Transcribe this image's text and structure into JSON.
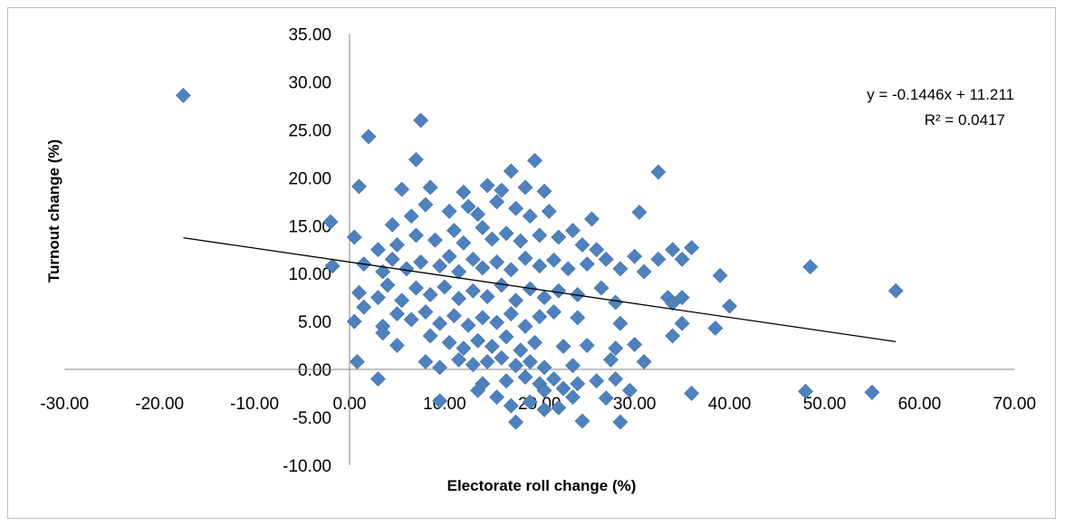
{
  "chart_data": {
    "type": "scatter",
    "xlabel": "Electorate roll change (%)",
    "ylabel": "Turnout change (%)",
    "xlim": [
      -30,
      70
    ],
    "ylim": [
      -10,
      35
    ],
    "x_ticks": [
      "-30.00",
      "-20.00",
      "-10.00",
      "0.00",
      "10.00",
      "20.00",
      "30.00",
      "40.00",
      "50.00",
      "60.00",
      "70.00"
    ],
    "y_ticks": [
      "-10.00",
      "-5.00",
      "0.00",
      "5.00",
      "10.00",
      "15.00",
      "20.00",
      "25.00",
      "30.00",
      "35.00"
    ],
    "trendline": {
      "equation": "y = -0.1446x + 11.211",
      "r_squared": "R² = 0.0417",
      "slope": -0.1446,
      "intercept": 11.211,
      "x_range": [
        -17.5,
        57.5
      ]
    },
    "marker_color": "#4f81bd",
    "line_color": "#000000",
    "points": [
      [
        -17.5,
        28.6
      ],
      [
        7.5,
        26.0
      ],
      [
        2.0,
        24.3
      ],
      [
        7.0,
        21.9
      ],
      [
        17.0,
        20.7
      ],
      [
        19.5,
        21.8
      ],
      [
        32.5,
        20.6
      ],
      [
        1.0,
        19.1
      ],
      [
        5.5,
        18.8
      ],
      [
        8.5,
        19.0
      ],
      [
        12.0,
        18.5
      ],
      [
        14.5,
        19.2
      ],
      [
        16.0,
        18.7
      ],
      [
        18.5,
        19.0
      ],
      [
        20.5,
        18.6
      ],
      [
        -2.0,
        15.4
      ],
      [
        4.5,
        15.1
      ],
      [
        6.5,
        16.0
      ],
      [
        8.0,
        17.2
      ],
      [
        10.5,
        16.5
      ],
      [
        12.5,
        17.0
      ],
      [
        13.5,
        16.2
      ],
      [
        15.5,
        17.5
      ],
      [
        17.5,
        16.8
      ],
      [
        19.0,
        16.0
      ],
      [
        21.0,
        16.5
      ],
      [
        25.5,
        15.7
      ],
      [
        30.5,
        16.4
      ],
      [
        0.5,
        13.8
      ],
      [
        3.0,
        12.5
      ],
      [
        5.0,
        13.0
      ],
      [
        7.0,
        14.0
      ],
      [
        9.0,
        13.5
      ],
      [
        11.0,
        14.5
      ],
      [
        12.0,
        13.2
      ],
      [
        14.0,
        14.8
      ],
      [
        15.0,
        13.6
      ],
      [
        16.5,
        14.2
      ],
      [
        18.0,
        13.4
      ],
      [
        20.0,
        14.0
      ],
      [
        22.0,
        13.8
      ],
      [
        23.5,
        14.5
      ],
      [
        24.5,
        13.0
      ],
      [
        26.0,
        12.5
      ],
      [
        -1.8,
        10.8
      ],
      [
        1.5,
        11.0
      ],
      [
        3.5,
        10.2
      ],
      [
        4.5,
        11.5
      ],
      [
        6.0,
        10.5
      ],
      [
        7.5,
        11.2
      ],
      [
        9.5,
        10.8
      ],
      [
        10.5,
        11.8
      ],
      [
        11.5,
        10.2
      ],
      [
        13.0,
        11.5
      ],
      [
        14.0,
        10.6
      ],
      [
        15.5,
        11.2
      ],
      [
        17.0,
        10.4
      ],
      [
        18.5,
        11.6
      ],
      [
        20.0,
        10.8
      ],
      [
        21.5,
        11.4
      ],
      [
        23.0,
        10.5
      ],
      [
        25.0,
        11.0
      ],
      [
        27.0,
        11.5
      ],
      [
        28.5,
        10.5
      ],
      [
        30.0,
        11.8
      ],
      [
        31.0,
        10.2
      ],
      [
        32.5,
        11.5
      ],
      [
        34.0,
        12.5
      ],
      [
        35.0,
        11.5
      ],
      [
        36.0,
        12.7
      ],
      [
        39.0,
        9.8
      ],
      [
        48.5,
        10.7
      ],
      [
        57.5,
        8.2
      ],
      [
        1.0,
        8.0
      ],
      [
        3.0,
        7.5
      ],
      [
        4.0,
        8.8
      ],
      [
        5.5,
        7.2
      ],
      [
        7.0,
        8.5
      ],
      [
        8.5,
        7.8
      ],
      [
        10.0,
        8.6
      ],
      [
        11.5,
        7.4
      ],
      [
        13.0,
        8.2
      ],
      [
        14.5,
        7.6
      ],
      [
        16.0,
        8.8
      ],
      [
        17.5,
        7.2
      ],
      [
        19.0,
        8.4
      ],
      [
        20.5,
        7.5
      ],
      [
        22.0,
        8.2
      ],
      [
        24.0,
        7.8
      ],
      [
        26.5,
        8.5
      ],
      [
        28.0,
        7.0
      ],
      [
        33.5,
        7.5
      ],
      [
        35.0,
        7.5
      ],
      [
        40.0,
        6.6
      ],
      [
        34.0,
        6.9
      ],
      [
        0.5,
        5.0
      ],
      [
        1.5,
        6.5
      ],
      [
        3.5,
        4.5
      ],
      [
        5.0,
        5.8
      ],
      [
        6.5,
        5.2
      ],
      [
        8.0,
        6.0
      ],
      [
        9.5,
        4.8
      ],
      [
        11.0,
        5.6
      ],
      [
        12.5,
        4.6
      ],
      [
        14.0,
        5.4
      ],
      [
        15.5,
        4.9
      ],
      [
        17.0,
        5.8
      ],
      [
        18.5,
        4.5
      ],
      [
        20.0,
        5.5
      ],
      [
        21.5,
        6.0
      ],
      [
        24.0,
        5.4
      ],
      [
        28.5,
        4.8
      ],
      [
        35.0,
        4.8
      ],
      [
        38.5,
        4.3
      ],
      [
        34.0,
        3.5
      ],
      [
        3.5,
        3.8
      ],
      [
        5.0,
        2.5
      ],
      [
        8.5,
        3.5
      ],
      [
        10.5,
        2.8
      ],
      [
        12.0,
        2.2
      ],
      [
        13.5,
        3.0
      ],
      [
        15.0,
        2.4
      ],
      [
        16.5,
        3.4
      ],
      [
        18.0,
        2.0
      ],
      [
        19.5,
        2.8
      ],
      [
        22.5,
        2.4
      ],
      [
        25.0,
        2.5
      ],
      [
        28.0,
        2.2
      ],
      [
        30.0,
        2.6
      ],
      [
        0.8,
        0.8
      ],
      [
        8.0,
        0.8
      ],
      [
        9.5,
        0.2
      ],
      [
        11.5,
        1.0
      ],
      [
        13.0,
        0.5
      ],
      [
        14.5,
        0.8
      ],
      [
        16.0,
        1.2
      ],
      [
        17.5,
        0.4
      ],
      [
        19.0,
        0.8
      ],
      [
        20.5,
        0.2
      ],
      [
        23.5,
        0.4
      ],
      [
        27.5,
        1.0
      ],
      [
        31.0,
        0.8
      ],
      [
        3.0,
        -1.0
      ],
      [
        14.0,
        -1.5
      ],
      [
        16.5,
        -1.2
      ],
      [
        18.5,
        -0.8
      ],
      [
        20.0,
        -1.5
      ],
      [
        21.5,
        -1.0
      ],
      [
        24.0,
        -1.5
      ],
      [
        26.0,
        -1.2
      ],
      [
        28.0,
        -1.0
      ],
      [
        13.5,
        -2.2
      ],
      [
        20.5,
        -2.2
      ],
      [
        22.5,
        -2.0
      ],
      [
        29.5,
        -2.2
      ],
      [
        9.5,
        -3.3
      ],
      [
        15.5,
        -2.9
      ],
      [
        19.0,
        -3.4
      ],
      [
        23.5,
        -2.9
      ],
      [
        27.0,
        -3.0
      ],
      [
        36.0,
        -2.5
      ],
      [
        48.0,
        -2.3
      ],
      [
        55.0,
        -2.4
      ],
      [
        17.0,
        -3.8
      ],
      [
        22.0,
        -4.0
      ],
      [
        20.5,
        -4.2
      ],
      [
        17.5,
        -5.5
      ],
      [
        24.5,
        -5.4
      ],
      [
        28.5,
        -5.5
      ]
    ]
  }
}
